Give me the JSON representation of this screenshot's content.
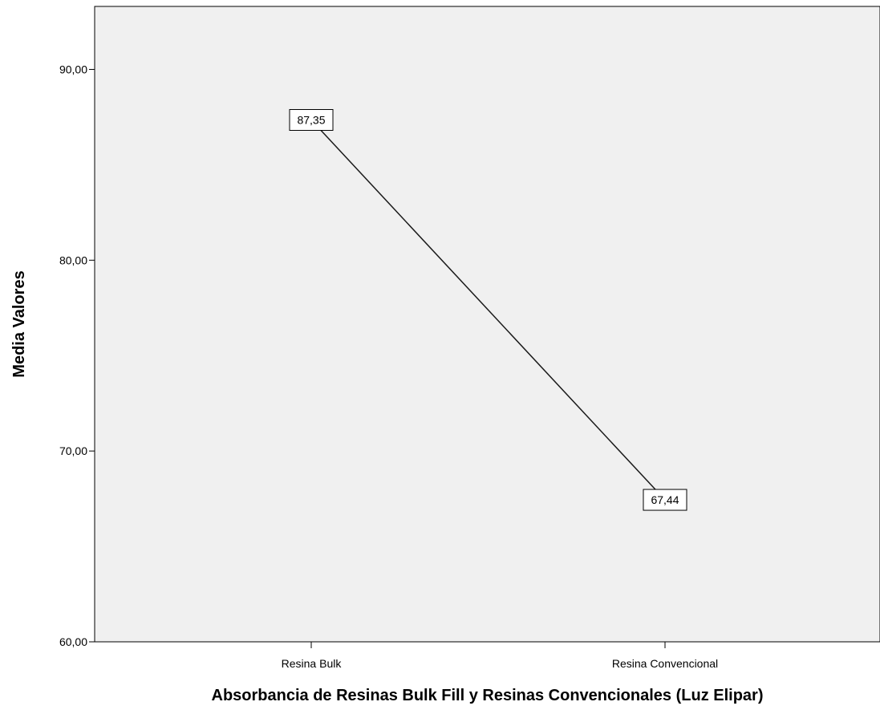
{
  "chart_data": {
    "type": "line",
    "title": "",
    "xlabel": "Absorbancia de Resinas Bulk Fill y Resinas Convencionales (Luz Elipar)",
    "ylabel": "Media Valores",
    "categories": [
      "Resina Bulk",
      "Resina Convencional"
    ],
    "series": [
      {
        "values": [
          87.35,
          67.44
        ],
        "data_labels": [
          "87,35",
          "67,44"
        ]
      }
    ],
    "ylim": [
      60,
      93.3
    ],
    "y_ticks": [
      60,
      70,
      80,
      90
    ],
    "y_tick_labels": [
      "60,00",
      "70,00",
      "80,00",
      "90,00"
    ],
    "grid": false,
    "legend": "none",
    "colors": {
      "plot_background": "#f0f0f0",
      "line": "#1a1a1a",
      "axis": "#000000",
      "label_box_fill": "#ffffff"
    }
  }
}
